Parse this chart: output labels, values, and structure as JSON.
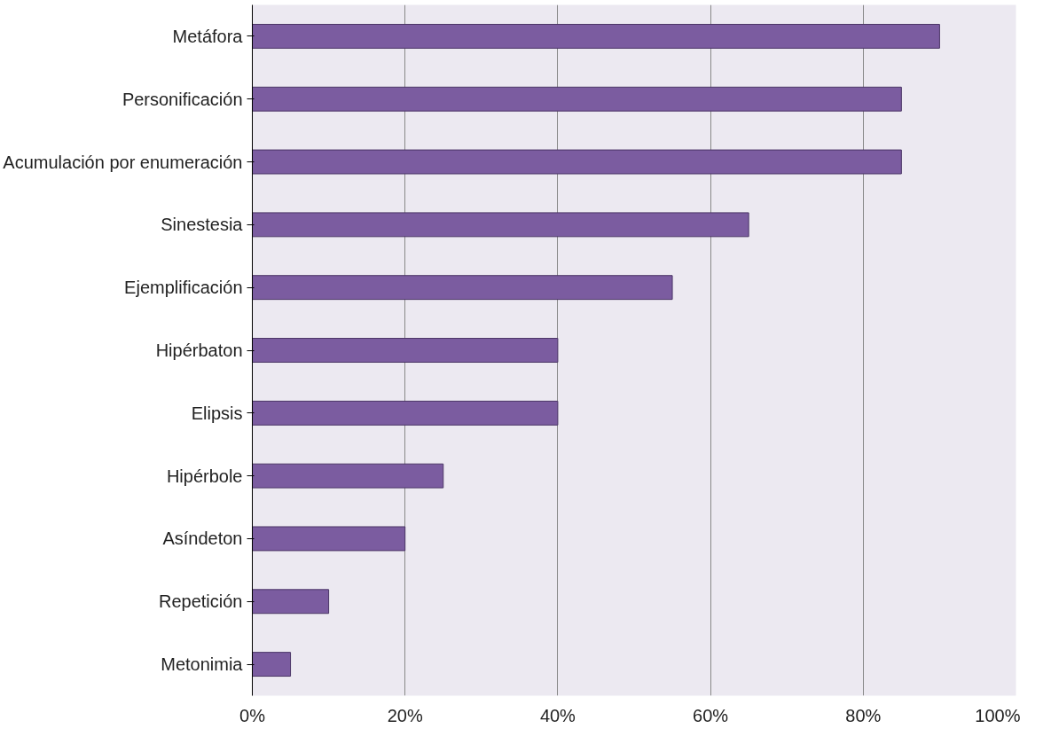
{
  "chart_data": {
    "type": "bar",
    "orientation": "horizontal",
    "categories": [
      "Metáfora",
      "Personificación",
      "Acumulación por enumeración",
      "Sinestesia",
      "Ejemplificación",
      "Hipérbaton",
      "Elipsis",
      "Hipérbole",
      "Asíndeton",
      "Repetición",
      "Metonimia"
    ],
    "values": [
      90,
      85,
      85,
      65,
      55,
      40,
      40,
      25,
      20,
      10,
      5
    ],
    "color": "#7b5ca0",
    "xlim": [
      0,
      100
    ],
    "xticks": [
      {
        "value": 0,
        "label": "0%"
      },
      {
        "value": 20,
        "label": "20%"
      },
      {
        "value": 40,
        "label": "40%"
      },
      {
        "value": 60,
        "label": "60%"
      },
      {
        "value": 80,
        "label": "80%"
      },
      {
        "value": 100,
        "label": "100%"
      }
    ],
    "grid": "x"
  }
}
